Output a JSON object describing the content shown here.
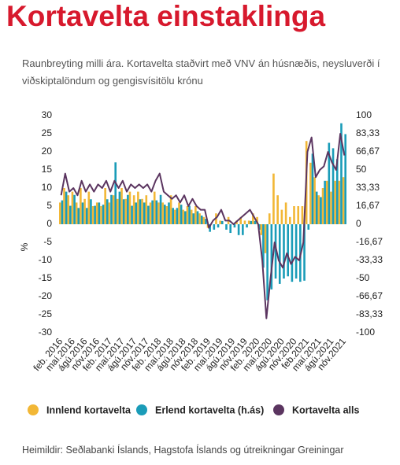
{
  "chart_data": {
    "type": "bar",
    "title": "Kortavelta einstaklinga",
    "subtitle": "Raunbreyting milli ára. Kortavelta staðvirt með VNV án húsnæðis, neysluverði í viðskiptalöndum og gengisvísitölu krónu",
    "y_label": "%",
    "source": "Heimildir: Seðlabanki Íslands, Hagstofa Íslands og útreikningar Greiningar",
    "categories": [
      "feb. 2016",
      null,
      null,
      "maí.2016",
      null,
      null,
      "ágú.2016",
      null,
      null,
      "nóv.2016",
      null,
      null,
      "feb. 2017",
      null,
      null,
      "maí.2017",
      null,
      null,
      "ágú.2017",
      null,
      null,
      "nóv.2017",
      null,
      null,
      "feb. 2018",
      null,
      null,
      "maí.2018",
      null,
      null,
      "ágú.2018",
      null,
      null,
      "nóv.2018",
      null,
      null,
      "feb. 2019",
      null,
      null,
      "maí.2019",
      null,
      null,
      "ágú.2019",
      null,
      null,
      "nóv.2019",
      null,
      null,
      "feb. 2020",
      null,
      null,
      "maí.2020",
      null,
      null,
      "ágú.2020",
      null,
      null,
      "nóv.2020",
      null,
      null,
      "feb.2021",
      null,
      null,
      "maí.2021",
      null,
      null,
      "ágú.2021",
      null,
      null,
      "nóv.2021"
    ],
    "series": [
      {
        "name": "Innlend kortavelta",
        "type": "bar",
        "color": "#f2b736",
        "values": [
          6,
          10,
          8,
          9,
          6,
          10,
          7,
          9,
          5,
          6,
          5,
          10,
          6,
          8,
          7,
          10,
          7,
          9,
          8,
          9,
          7,
          8,
          6,
          9,
          6,
          6,
          5,
          8,
          4,
          6,
          4,
          5,
          4,
          5,
          3,
          2,
          -1,
          0,
          3,
          1,
          0,
          2,
          0,
          1,
          2,
          1,
          1,
          3,
          2,
          -3,
          -8,
          3,
          14,
          8,
          4,
          6,
          2,
          5,
          5,
          5,
          23,
          17,
          13,
          8,
          10,
          12,
          9,
          12,
          12,
          13
        ]
      },
      {
        "name": "Erlend kortavelta (h.ás)",
        "type": "bar",
        "axis": "y2",
        "color": "#1a9cb8",
        "values": [
          22,
          30,
          17,
          27,
          15,
          20,
          15,
          23,
          17,
          20,
          18,
          23,
          27,
          57,
          30,
          23,
          27,
          17,
          20,
          23,
          20,
          17,
          22,
          22,
          27,
          18,
          20,
          15,
          15,
          18,
          12,
          17,
          10,
          12,
          8,
          5,
          -7,
          -5,
          -3,
          3,
          -5,
          -8,
          -3,
          -10,
          -10,
          -3,
          3,
          3,
          -5,
          -40,
          -70,
          -60,
          -50,
          -55,
          -50,
          -48,
          -53,
          -50,
          -53,
          -52,
          -5,
          65,
          30,
          25,
          40,
          75,
          70,
          60,
          93,
          83
        ]
      },
      {
        "name": "Kortavelta alls",
        "type": "line",
        "color": "#5b3560",
        "values": [
          8,
          14,
          9,
          10,
          8,
          12,
          9,
          11,
          9,
          11,
          10,
          12,
          9,
          12,
          10,
          12,
          9,
          11,
          10,
          11,
          10,
          11,
          9,
          12,
          14,
          9,
          8,
          7,
          8,
          6,
          8,
          5,
          7,
          5,
          4,
          4,
          -1,
          1,
          2,
          4,
          1,
          1,
          0,
          1,
          2,
          3,
          4,
          2,
          0,
          -10,
          -26,
          -15,
          -5,
          -10,
          -12,
          -8,
          -11,
          -9,
          -10,
          -5,
          20,
          24,
          13,
          15,
          16,
          20,
          17,
          15,
          25,
          19
        ]
      }
    ],
    "ylim": [
      -30,
      30
    ],
    "yticks": [
      30,
      25,
      20,
      15,
      10,
      5,
      0,
      -5,
      -10,
      -15,
      -20,
      -25,
      -30
    ],
    "y2lim": [
      -100,
      100
    ],
    "y2ticks": [
      100,
      {
        "value": 83.33,
        "label": "83,33"
      },
      {
        "value": 66.67,
        "label": "66,67"
      },
      50,
      {
        "value": 33.33,
        "label": "33,33"
      },
      {
        "value": 16.67,
        "label": "16,67"
      },
      0,
      {
        "value": -16.67,
        "label": "-16,67"
      },
      {
        "value": -33.33,
        "label": "-33,33"
      },
      -50,
      {
        "value": -66.67,
        "label": "-66,67"
      },
      {
        "value": -83.33,
        "label": "-83,33"
      },
      -100
    ]
  }
}
